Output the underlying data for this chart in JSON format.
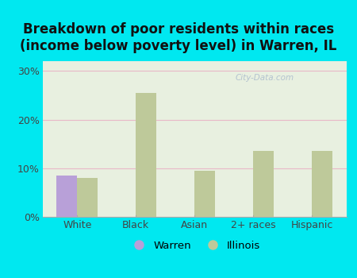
{
  "title": "Breakdown of poor residents within races\n(income below poverty level) in Warren, IL",
  "categories": [
    "White",
    "Black",
    "Asian",
    "2+ races",
    "Hispanic"
  ],
  "warren_values": [
    8.5,
    0,
    0,
    0,
    0
  ],
  "illinois_values": [
    8.0,
    25.5,
    9.5,
    13.5,
    13.5
  ],
  "warren_color": "#b8a0d8",
  "illinois_color": "#bec99a",
  "background_color": "#00e8f0",
  "plot_bg_top": "#f5faf5",
  "plot_bg_bottom": "#d8edd8",
  "grid_color": "#e8b8c8",
  "title_fontsize": 12,
  "ylabel_ticks": [
    "0%",
    "10%",
    "20%",
    "30%"
  ],
  "ytick_values": [
    0,
    10,
    20,
    30
  ],
  "ylim": [
    0,
    32
  ],
  "bar_width": 0.35,
  "legend_warren": "Warren",
  "legend_illinois": "Illinois"
}
